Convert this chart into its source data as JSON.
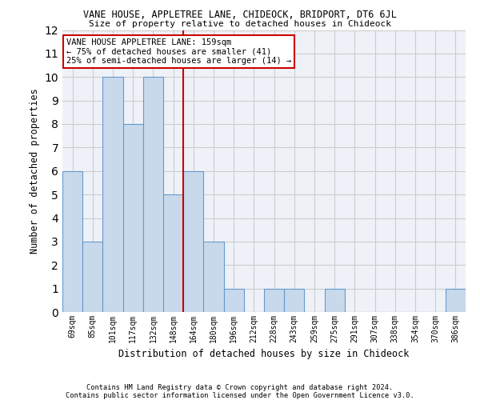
{
  "title": "VANE HOUSE, APPLETREE LANE, CHIDEOCK, BRIDPORT, DT6 6JL",
  "subtitle": "Size of property relative to detached houses in Chideock",
  "xlabel": "Distribution of detached houses by size in Chideock",
  "ylabel": "Number of detached properties",
  "categories": [
    "69sqm",
    "85sqm",
    "101sqm",
    "117sqm",
    "132sqm",
    "148sqm",
    "164sqm",
    "180sqm",
    "196sqm",
    "212sqm",
    "228sqm",
    "243sqm",
    "259sqm",
    "275sqm",
    "291sqm",
    "307sqm",
    "338sqm",
    "354sqm",
    "370sqm",
    "386sqm"
  ],
  "values": [
    6,
    3,
    10,
    8,
    10,
    5,
    6,
    3,
    1,
    0,
    1,
    1,
    0,
    1,
    0,
    0,
    0,
    0,
    0,
    1
  ],
  "bar_color": "#c9d9ec",
  "bar_edgecolor": "#6699cc",
  "vline_x": 5.5,
  "vline_color": "#cc0000",
  "annotation_text": "VANE HOUSE APPLETREE LANE: 159sqm\n← 75% of detached houses are smaller (41)\n25% of semi-detached houses are larger (14) →",
  "annotation_box_color": "#ffffff",
  "annotation_box_edgecolor": "#cc0000",
  "ylim": [
    0,
    12
  ],
  "yticks": [
    0,
    1,
    2,
    3,
    4,
    5,
    6,
    7,
    8,
    9,
    10,
    11,
    12
  ],
  "grid_color": "#cccccc",
  "background_color": "#eef2f8",
  "footer1": "Contains HM Land Registry data © Crown copyright and database right 2024.",
  "footer2": "Contains public sector information licensed under the Open Government Licence v3.0."
}
